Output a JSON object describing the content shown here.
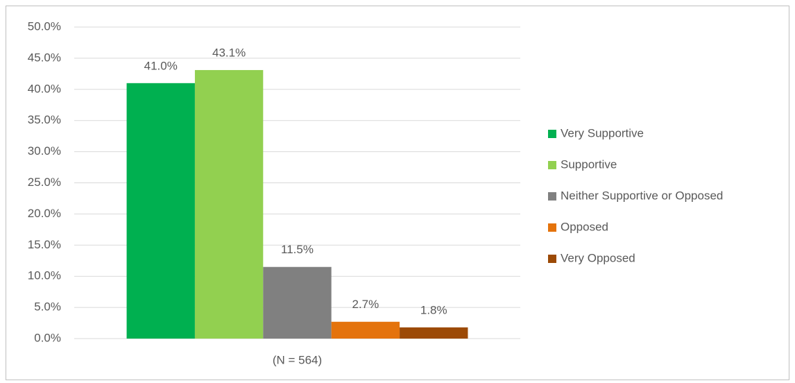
{
  "chart_data": {
    "type": "bar",
    "categories": [
      "(N = 564)"
    ],
    "series": [
      {
        "name": "Very Supportive",
        "color": "#00b050",
        "values": [
          41.0
        ],
        "value_labels": [
          "41.0%"
        ]
      },
      {
        "name": "Supportive",
        "color": "#92d050",
        "values": [
          43.1
        ],
        "value_labels": [
          "43.1%"
        ]
      },
      {
        "name": "Neither Supportive or Opposed",
        "color": "#808080",
        "values": [
          11.5
        ],
        "value_labels": [
          "11.5%"
        ]
      },
      {
        "name": "Opposed",
        "color": "#e4730c",
        "values": [
          2.7
        ],
        "value_labels": [
          "2.7%"
        ]
      },
      {
        "name": "Very Opposed",
        "color": "#9c4a06",
        "values": [
          1.8
        ],
        "value_labels": [
          "1.8%"
        ]
      }
    ],
    "ylim": [
      0,
      50
    ],
    "yticks": [
      {
        "value": 0,
        "label": "0.0%"
      },
      {
        "value": 5,
        "label": "5.0%"
      },
      {
        "value": 10,
        "label": "10.0%"
      },
      {
        "value": 15,
        "label": "15.0%"
      },
      {
        "value": 20,
        "label": "20.0%"
      },
      {
        "value": 25,
        "label": "25.0%"
      },
      {
        "value": 30,
        "label": "30.0%"
      },
      {
        "value": 35,
        "label": "35.0%"
      },
      {
        "value": 40,
        "label": "40.0%"
      },
      {
        "value": 45,
        "label": "45.0%"
      },
      {
        "value": 50,
        "label": "50.0%"
      }
    ],
    "grid": true,
    "legend": "right"
  }
}
